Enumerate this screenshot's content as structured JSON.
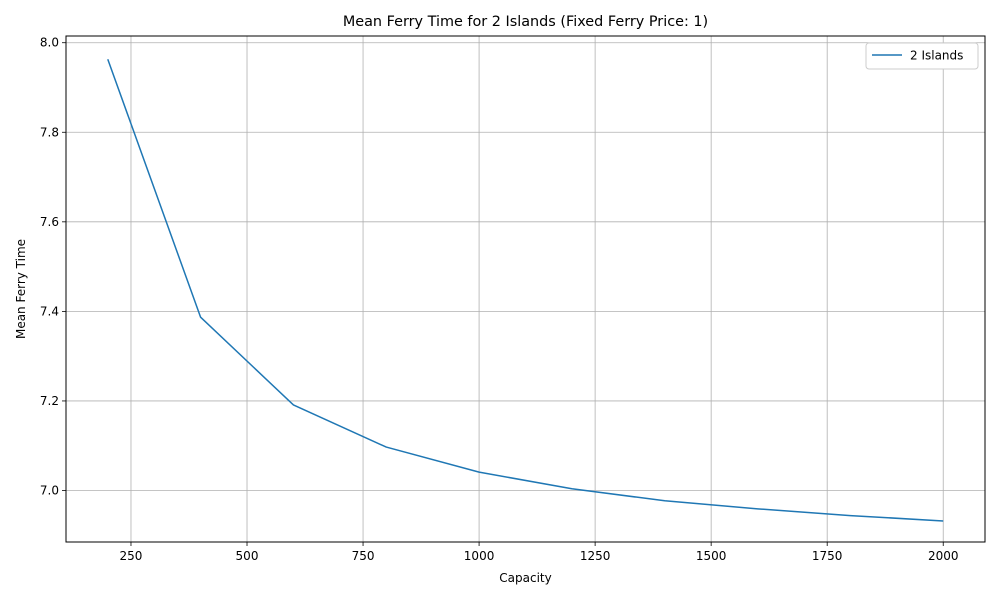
{
  "chart_data": {
    "type": "line",
    "title": "Mean Ferry Time for 2 Islands (Fixed Ferry Price: 1)",
    "xlabel": "Capacity",
    "ylabel": "Mean Ferry Time",
    "xlim": [
      110,
      2090
    ],
    "ylim": [
      6.885,
      8.015
    ],
    "xticks": [
      250,
      500,
      750,
      1000,
      1250,
      1500,
      1750,
      2000
    ],
    "yticks": [
      7.0,
      7.2,
      7.4,
      7.6,
      7.8,
      8.0
    ],
    "grid": true,
    "legend_position": "top-right",
    "x": [
      200,
      400,
      600,
      800,
      1000,
      1200,
      1400,
      1600,
      1800,
      2000
    ],
    "series": [
      {
        "name": "2 Islands",
        "color": "#1f77b4",
        "values": [
          7.963,
          7.387,
          7.191,
          7.097,
          7.041,
          7.004,
          6.977,
          6.959,
          6.944,
          6.932
        ]
      }
    ]
  }
}
